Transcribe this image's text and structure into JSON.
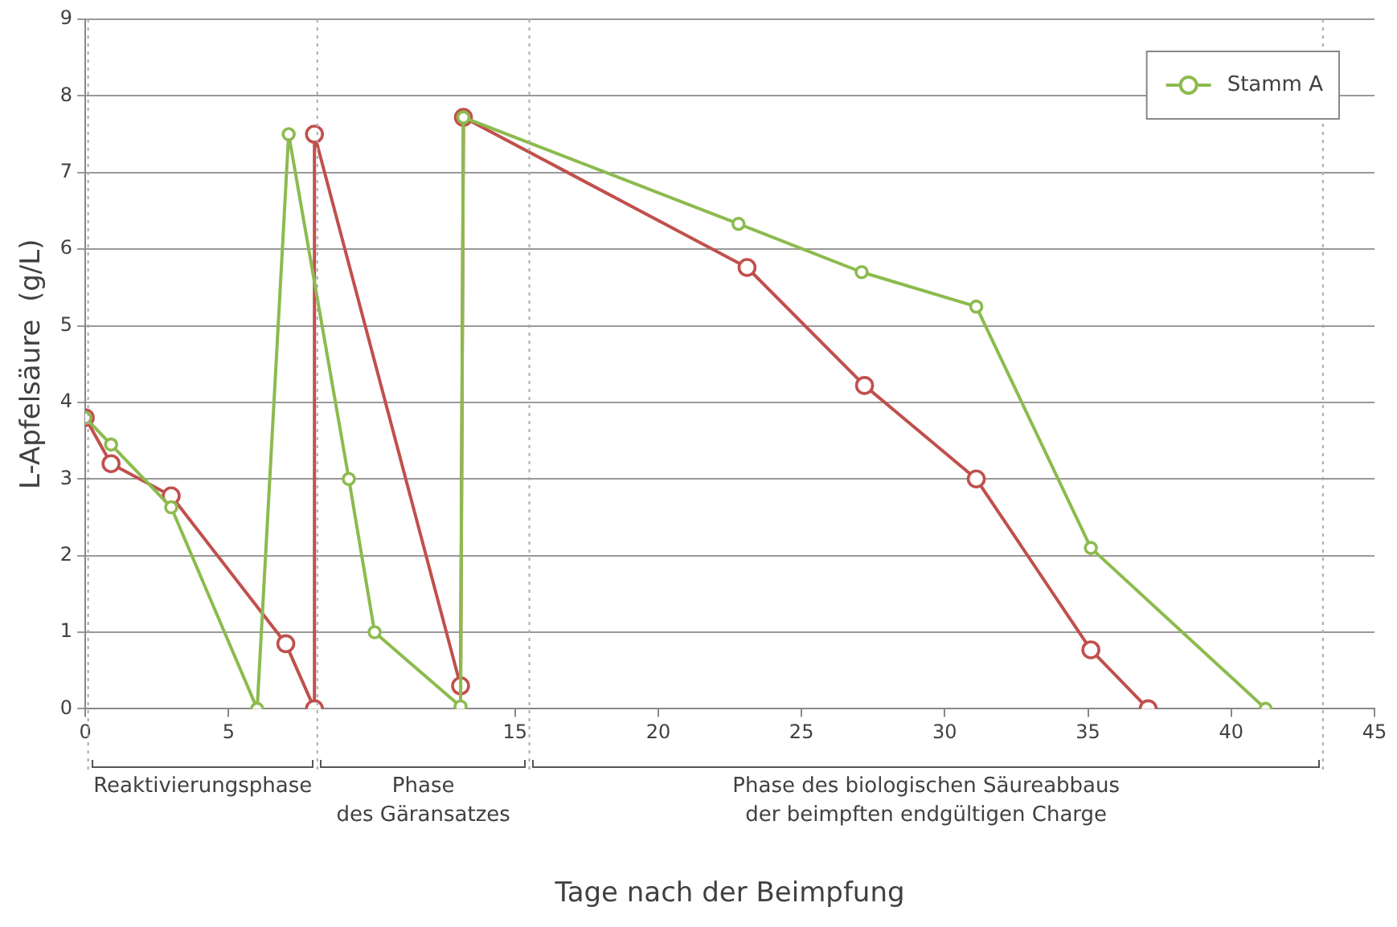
{
  "chart_data": {
    "type": "line",
    "xlabel": "Tage nach der Beimpfung",
    "ylabel": "L-Apfelsäure  (g/L)",
    "xlim": [
      0,
      45
    ],
    "xticks": [
      0,
      5,
      15,
      20,
      25,
      30,
      35,
      40,
      45
    ],
    "ylim": [
      0,
      9
    ],
    "yticks": [
      0,
      1,
      2,
      3,
      4,
      5,
      6,
      7,
      8,
      9
    ],
    "grid": "y",
    "legend": "top right",
    "marker": "circle",
    "line_style": "solid",
    "series": [
      {
        "color": "#c0504d",
        "x": [
          0,
          0.9,
          3,
          7,
          8,
          8,
          13.1,
          13.2,
          23.1,
          27.2,
          31.1,
          35.1,
          37.1
        ],
        "values": [
          3.8,
          3.2,
          2.78,
          0.85,
          0,
          7.5,
          0.3,
          7.72,
          5.76,
          4.22,
          3.0,
          0.77,
          0
        ]
      },
      {
        "name": "Stamm A",
        "color": "#8cbb4e",
        "x": [
          0,
          0.9,
          3,
          6,
          7.1,
          9.2,
          10.1,
          13.1,
          13.2,
          22.8,
          27.1,
          31.1,
          35.1,
          41.2
        ],
        "values": [
          3.8,
          3.45,
          2.63,
          0,
          7.5,
          3.0,
          1.0,
          0.03,
          7.72,
          6.33,
          5.7,
          5.25,
          2.1,
          0
        ]
      }
    ],
    "ref_lines": [
      {
        "axis": "x",
        "value": 0.1,
        "color": "#aaaaaa",
        "line_style": "dotted"
      },
      {
        "axis": "x",
        "value": 8.1,
        "color": "#aaaaaa",
        "line_style": "dotted"
      },
      {
        "axis": "x",
        "value": 15.5,
        "color": "#aaaaaa",
        "line_style": "dotted"
      },
      {
        "axis": "x",
        "value": 43.2,
        "color": "#aaaaaa",
        "line_style": "dotted"
      }
    ],
    "annotations": [
      "Reaktivierungsphase",
      "Phase\ndes Gäransatzes",
      "Phase des biologischen Säureabbaus\nder beimpften endgültigen Charge"
    ]
  }
}
